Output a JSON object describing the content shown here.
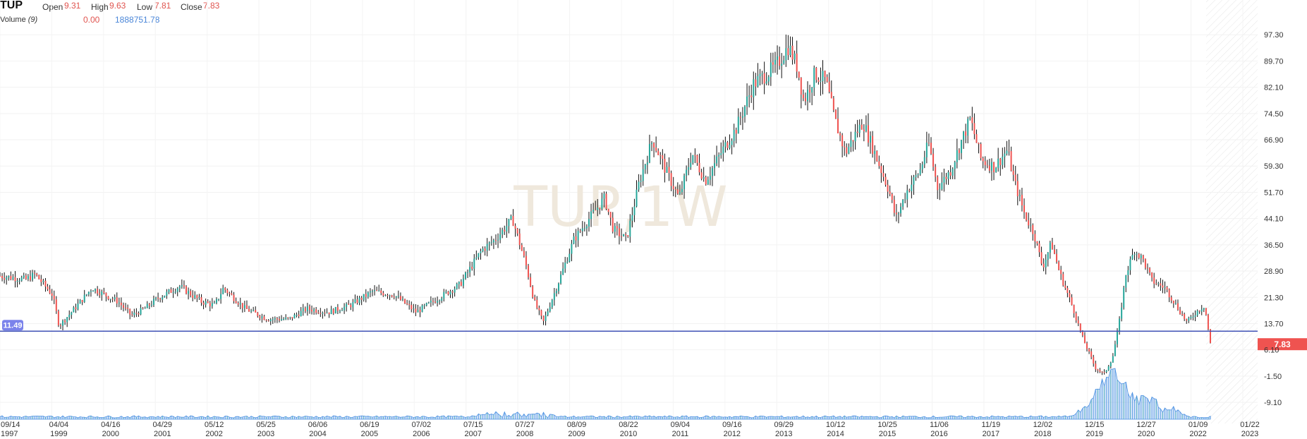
{
  "header": {
    "symbol": "TUP",
    "open_label": "Open",
    "open_value": "9.31",
    "high_label": "High",
    "high_value": "9.63",
    "low_label": "Low",
    "low_value": "7.81",
    "close_label": "Close",
    "close_value": "7.83",
    "volume_label": "Volume",
    "volume_period": "(9)",
    "volume_value_a": "0.00",
    "volume_value_b": "1888751.78"
  },
  "watermark": "TUP,1W",
  "colors": {
    "up": "#26a69a",
    "down": "#ef5350",
    "wick": "#111111",
    "level_line": "#3f51b5",
    "level_badge": "#7b83eb",
    "price_badge": "#ef5350",
    "volume": "#4a90e2",
    "watermark": "#efe8dc"
  },
  "chart_data": {
    "type": "candlestick",
    "title": "",
    "price_axis": {
      "range": [
        -5.0,
        100.0
      ],
      "ticks": [
        "97.30",
        "89.70",
        "82.10",
        "74.50",
        "66.90",
        "59.30",
        "51.70",
        "44.10",
        "36.50",
        "28.90",
        "21.30",
        "13.70",
        "6.10",
        "-1.50",
        "-9.10"
      ]
    },
    "time_axis": {
      "range_years": [
        1997.7,
        2023.1
      ],
      "ticks": [
        {
          "date": "09/14",
          "year": "1997"
        },
        {
          "date": "04/04",
          "year": "1999"
        },
        {
          "date": "04/16",
          "year": "2000"
        },
        {
          "date": "04/29",
          "year": "2001"
        },
        {
          "date": "05/12",
          "year": "2002"
        },
        {
          "date": "05/25",
          "year": "2003"
        },
        {
          "date": "06/06",
          "year": "2004"
        },
        {
          "date": "06/19",
          "year": "2005"
        },
        {
          "date": "07/02",
          "year": "2006"
        },
        {
          "date": "07/15",
          "year": "2007"
        },
        {
          "date": "07/27",
          "year": "2008"
        },
        {
          "date": "08/09",
          "year": "2009"
        },
        {
          "date": "08/22",
          "year": "2010"
        },
        {
          "date": "09/04",
          "year": "2011"
        },
        {
          "date": "09/16",
          "year": "2012"
        },
        {
          "date": "09/29",
          "year": "2013"
        },
        {
          "date": "10/12",
          "year": "2014"
        },
        {
          "date": "10/25",
          "year": "2015"
        },
        {
          "date": "11/06",
          "year": "2016"
        },
        {
          "date": "11/19",
          "year": "2017"
        },
        {
          "date": "12/02",
          "year": "2018"
        },
        {
          "date": "12/15",
          "year": "2019"
        },
        {
          "date": "12/27",
          "year": "2020"
        },
        {
          "date": "01/09",
          "year": "2022"
        },
        {
          "date": "01/22",
          "year": "2023"
        }
      ]
    },
    "price_path": [
      [
        1997.7,
        27.5
      ],
      [
        1998.3,
        26.5
      ],
      [
        1998.5,
        28.0
      ],
      [
        1998.9,
        22.0
      ],
      [
        1999.05,
        13.0
      ],
      [
        1999.4,
        18.0
      ],
      [
        1999.8,
        24.0
      ],
      [
        2000.4,
        20.0
      ],
      [
        2000.7,
        16.0
      ],
      [
        2001.0,
        18.0
      ],
      [
        2001.3,
        21.0
      ],
      [
        2001.8,
        24.5
      ],
      [
        2002.3,
        20.0
      ],
      [
        2002.6,
        19.0
      ],
      [
        2002.8,
        24.0
      ],
      [
        2003.3,
        18.0
      ],
      [
        2003.8,
        15.0
      ],
      [
        2004.3,
        15.0
      ],
      [
        2004.7,
        18.0
      ],
      [
        2005.2,
        17.0
      ],
      [
        2005.7,
        19.0
      ],
      [
        2006.2,
        23.0
      ],
      [
        2006.7,
        22.0
      ],
      [
        2007.2,
        17.0
      ],
      [
        2007.7,
        21.0
      ],
      [
        2008.2,
        25.0
      ],
      [
        2008.7,
        35.0
      ],
      [
        2009.0,
        38.0
      ],
      [
        2009.4,
        44.0
      ],
      [
        2009.7,
        31.0
      ],
      [
        2009.9,
        20.0
      ],
      [
        2010.1,
        14.0
      ],
      [
        2010.4,
        24.0
      ],
      [
        2010.8,
        38.0
      ],
      [
        2011.2,
        45.0
      ],
      [
        2011.5,
        50.0
      ],
      [
        2011.7,
        41.0
      ],
      [
        2012.0,
        38.0
      ],
      [
        2012.3,
        55.0
      ],
      [
        2012.6,
        67.0
      ],
      [
        2012.9,
        58.0
      ],
      [
        2013.2,
        50.0
      ],
      [
        2013.5,
        63.0
      ],
      [
        2013.8,
        55.0
      ],
      [
        2014.2,
        64.0
      ],
      [
        2014.5,
        70.0
      ],
      [
        2014.9,
        83.0
      ],
      [
        2015.4,
        88.0
      ],
      [
        2015.7,
        94.0
      ],
      [
        2015.9,
        88.0
      ],
      [
        2016.05,
        78.0
      ],
      [
        2016.3,
        86.0
      ],
      [
        2016.55,
        84.0
      ],
      [
        2016.75,
        73.0
      ],
      [
        2017.0,
        63.0
      ],
      [
        2017.2,
        68.0
      ],
      [
        2017.4,
        72.0
      ],
      [
        2017.7,
        62.0
      ],
      [
        2018.0,
        52.0
      ],
      [
        2018.15,
        44.0
      ],
      [
        2018.4,
        52.0
      ],
      [
        2018.7,
        58.0
      ],
      [
        2018.9,
        66.0
      ],
      [
        2019.1,
        53.0
      ],
      [
        2019.4,
        58.0
      ],
      [
        2019.6,
        65.0
      ],
      [
        2019.85,
        73.0
      ],
      [
        2020.1,
        61.0
      ],
      [
        2020.4,
        59.0
      ],
      [
        2020.7,
        64.0
      ],
      [
        2020.85,
        55.0
      ],
      [
        2021.1,
        45.0
      ],
      [
        2021.3,
        40.0
      ],
      [
        2021.5,
        30.0
      ],
      [
        2021.7,
        37.0
      ],
      [
        2021.9,
        28.0
      ],
      [
        2022.2,
        18.0
      ],
      [
        2022.4,
        10.0
      ],
      [
        2022.7,
        1.0
      ],
      [
        2022.9,
        -1.0
      ],
      [
        2023.1,
        4.0
      ],
      [
        2023.25,
        14.0
      ],
      [
        2023.4,
        28.0
      ],
      [
        2023.6,
        35.0
      ],
      [
        2023.8,
        32.0
      ],
      [
        2024.0,
        26.0
      ],
      [
        2024.3,
        24.0
      ],
      [
        2024.6,
        18.0
      ],
      [
        2024.8,
        14.0
      ],
      [
        2025.0,
        17.0
      ],
      [
        2025.2,
        19.0
      ],
      [
        2025.33,
        7.8
      ]
    ],
    "level_line": {
      "value": 11.49,
      "label": "11.49"
    },
    "last_price": {
      "value": 7.83,
      "label": "7.83"
    },
    "volume_spikes": [
      [
        2022.4,
        0.25
      ],
      [
        2022.7,
        0.35
      ],
      [
        2022.9,
        0.9
      ],
      [
        2023.05,
        0.45
      ],
      [
        2023.2,
        1.0
      ],
      [
        2023.4,
        0.55
      ],
      [
        2023.6,
        0.3
      ],
      [
        2023.85,
        0.6
      ],
      [
        2024.1,
        0.35
      ],
      [
        2024.5,
        0.25
      ]
    ],
    "grid": true
  }
}
